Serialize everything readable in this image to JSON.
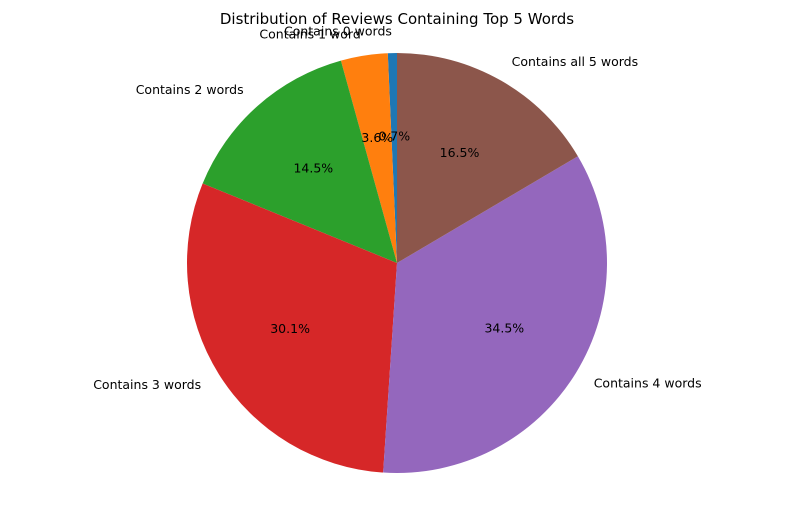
{
  "chart_data": {
    "type": "pie",
    "title": "Distribution of Reviews Containing Top 5 Words",
    "start_angle_deg": 90,
    "direction": "counterclockwise",
    "slices": [
      {
        "label": "Contains 0 words",
        "value": 0.7,
        "pct_label": "0.7%",
        "color": "#1f77b4"
      },
      {
        "label": "Contains 1 word",
        "value": 3.6,
        "pct_label": "3.6%",
        "color": "#ff7f0e"
      },
      {
        "label": "Contains 2 words",
        "value": 14.5,
        "pct_label": "14.5%",
        "color": "#2ca02c"
      },
      {
        "label": "Contains 3 words",
        "value": 30.1,
        "pct_label": "30.1%",
        "color": "#d62728"
      },
      {
        "label": "Contains 4 words",
        "value": 34.5,
        "pct_label": "34.5%",
        "color": "#9467bd"
      },
      {
        "label": "Contains all 5 words",
        "value": 16.5,
        "pct_label": "16.5%",
        "color": "#8c564b"
      }
    ]
  }
}
